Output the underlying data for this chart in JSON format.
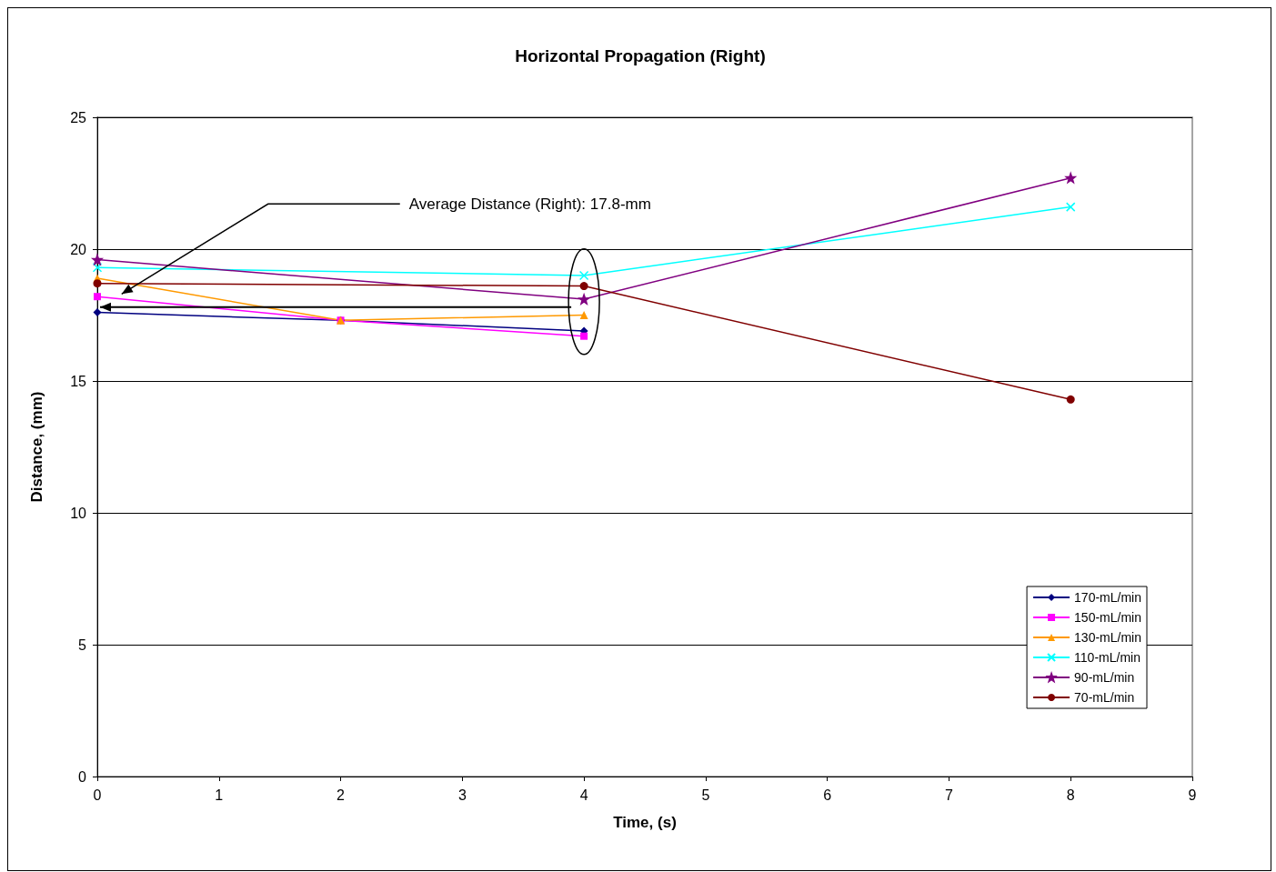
{
  "chart_data": {
    "type": "line",
    "title": "Horizontal Propagation (Right)",
    "xlabel": "Time, (s)",
    "ylabel": "Distance, (mm)",
    "xlim": [
      0,
      9
    ],
    "xticks": [
      0,
      1,
      2,
      3,
      4,
      5,
      6,
      7,
      8,
      9
    ],
    "ylim": [
      0,
      25
    ],
    "yticks": [
      0,
      5,
      10,
      15,
      20,
      25
    ],
    "grid": "y",
    "legend": "bottom right",
    "annotations": [
      {
        "text": "Average Distance (Right): 17.8-mm",
        "x": 0.2,
        "y": 18.3
      }
    ],
    "series": [
      {
        "name": "170-mL/min",
        "color": "#000080",
        "marker": "diamond",
        "x": [
          0,
          2,
          4
        ],
        "values": [
          17.6,
          17.3,
          16.9
        ]
      },
      {
        "name": "150-mL/min",
        "color": "#ff00ff",
        "marker": "square",
        "x": [
          0,
          2,
          4
        ],
        "values": [
          18.2,
          17.3,
          16.7
        ]
      },
      {
        "name": "130-mL/min",
        "color": "#ff9900",
        "marker": "triangle",
        "x": [
          0,
          2,
          4
        ],
        "values": [
          18.9,
          17.3,
          17.5
        ]
      },
      {
        "name": "110-mL/min",
        "color": "#00ffff",
        "marker": "cross",
        "x": [
          0,
          4,
          8
        ],
        "values": [
          19.3,
          19.0,
          21.6
        ]
      },
      {
        "name": "90-mL/min",
        "color": "#800080",
        "marker": "star",
        "x": [
          0,
          4,
          8
        ],
        "values": [
          19.6,
          18.1,
          22.7
        ]
      },
      {
        "name": "70-mL/min",
        "color": "#800000",
        "marker": "circle",
        "x": [
          0,
          4,
          8
        ],
        "values": [
          18.7,
          18.6,
          14.3
        ]
      }
    ]
  }
}
